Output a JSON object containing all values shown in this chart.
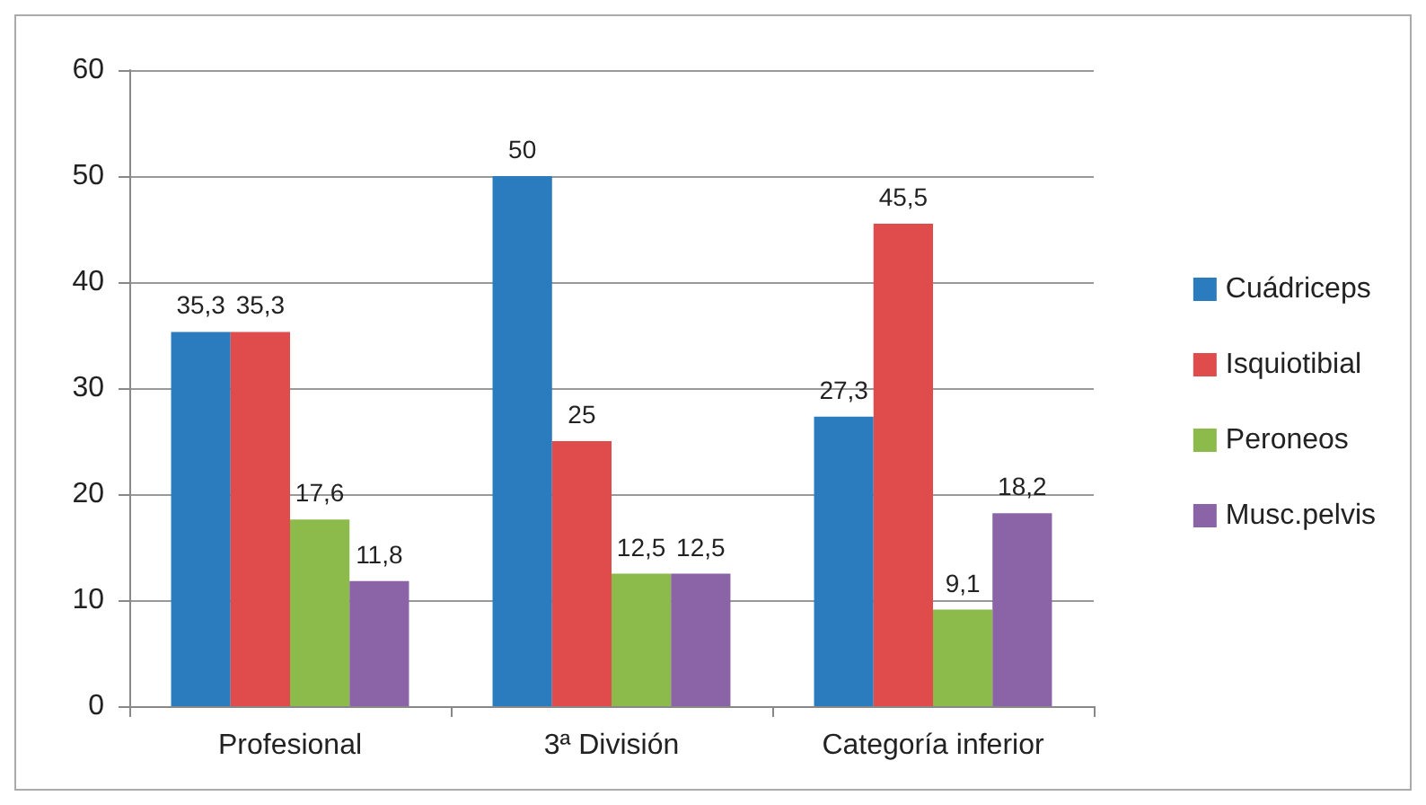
{
  "chart_data": {
    "type": "bar",
    "categories": [
      "Profesional",
      "3ª División",
      "Categoría inferior"
    ],
    "series": [
      {
        "name": "Cuádriceps",
        "color": "#2b7bbf",
        "values": [
          35.3,
          50,
          27.3
        ],
        "value_labels": [
          "35,3",
          "50",
          "27,3"
        ]
      },
      {
        "name": "Isquiotibial",
        "color": "#e04c4c",
        "values": [
          35.3,
          25,
          45.5
        ],
        "value_labels": [
          "35,3",
          "25",
          "45,5"
        ]
      },
      {
        "name": "Peroneos",
        "color": "#8cbb4c",
        "values": [
          17.6,
          12.5,
          9.1
        ],
        "value_labels": [
          "17,6",
          "12,5",
          "9,1"
        ]
      },
      {
        "name": "Musc.pelvis",
        "color": "#8a64a6",
        "values": [
          11.8,
          12.5,
          18.2
        ],
        "value_labels": [
          "11,8",
          "12,5",
          "18,2"
        ]
      }
    ],
    "ylim": [
      0,
      60
    ],
    "yticks": [
      0,
      10,
      20,
      30,
      40,
      50,
      60
    ],
    "grid": "y",
    "legend": "right"
  }
}
